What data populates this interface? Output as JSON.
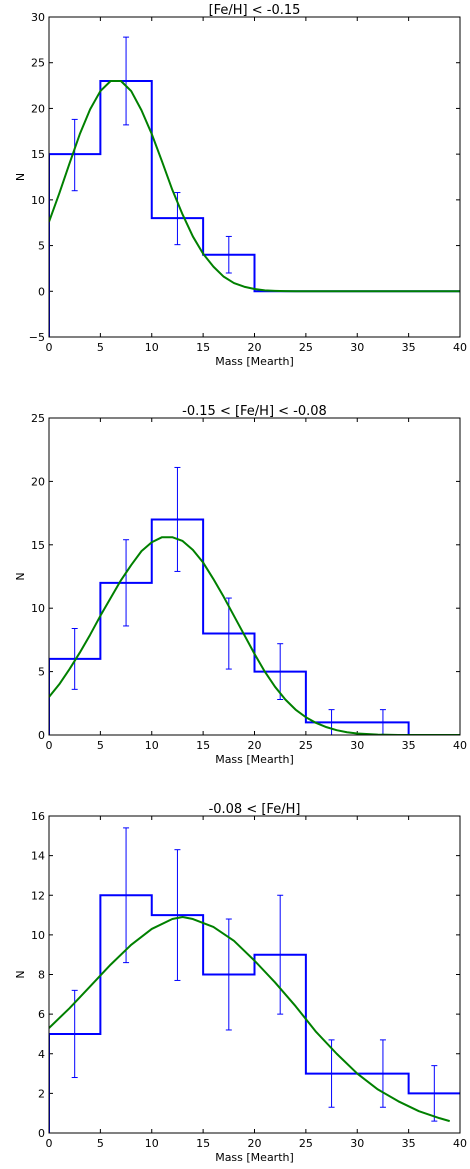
{
  "chart_data": [
    {
      "type": "histogram-step",
      "title": "[Fe/H] < -0.15",
      "xlabel": "Mass [Mearth]",
      "ylabel": "N",
      "xlim": [
        0,
        40
      ],
      "ylim": [
        -5,
        30
      ],
      "xticks": [
        0,
        5,
        10,
        15,
        20,
        25,
        30,
        35,
        40
      ],
      "yticks": [
        -5,
        0,
        5,
        10,
        15,
        20,
        25,
        30
      ],
      "bin_edges": [
        0,
        5,
        10,
        15,
        20,
        25,
        30,
        35,
        40
      ],
      "counts": [
        15,
        23,
        8,
        4,
        0,
        0,
        0,
        0
      ],
      "errorbars": [
        {
          "x": 2.5,
          "low": 11.0,
          "high": 18.8
        },
        {
          "x": 7.5,
          "low": 18.2,
          "high": 27.8
        },
        {
          "x": 12.5,
          "low": 5.1,
          "high": 10.8
        },
        {
          "x": 17.5,
          "low": 2.0,
          "high": 6.0
        }
      ],
      "fit_curve": {
        "x": [
          0,
          1,
          2,
          3,
          4,
          5,
          6,
          7,
          8,
          9,
          10,
          11,
          12,
          13,
          14,
          15,
          16,
          17,
          18,
          19,
          20,
          21,
          22,
          23,
          24,
          25,
          30,
          35,
          40
        ],
        "y": [
          7.6,
          10.7,
          14.0,
          17.2,
          19.9,
          21.9,
          23.0,
          23.0,
          21.9,
          19.8,
          17.2,
          14.2,
          11.1,
          8.4,
          6.0,
          4.1,
          2.7,
          1.6,
          0.9,
          0.5,
          0.25,
          0.1,
          0.05,
          0.02,
          0.01,
          0.0,
          0.0,
          0.0,
          0.0
        ]
      },
      "colors": {
        "histogram": "#0000ff",
        "errorbar": "#0000ff",
        "fit": "#008000"
      }
    },
    {
      "type": "histogram-step",
      "title": "-0.15 < [Fe/H] < -0.08",
      "xlabel": "Mass [Mearth]",
      "ylabel": "N",
      "xlim": [
        0,
        40
      ],
      "ylim": [
        0,
        25
      ],
      "xticks": [
        0,
        5,
        10,
        15,
        20,
        25,
        30,
        35,
        40
      ],
      "yticks": [
        0,
        5,
        10,
        15,
        20,
        25
      ],
      "bin_edges": [
        0,
        5,
        10,
        15,
        20,
        25,
        30,
        35,
        40
      ],
      "counts": [
        6,
        12,
        17,
        8,
        5,
        1,
        1,
        0
      ],
      "errorbars": [
        {
          "x": 2.5,
          "low": 3.6,
          "high": 8.4
        },
        {
          "x": 7.5,
          "low": 8.6,
          "high": 15.4
        },
        {
          "x": 12.5,
          "low": 12.9,
          "high": 21.1
        },
        {
          "x": 17.5,
          "low": 5.2,
          "high": 10.8
        },
        {
          "x": 22.5,
          "low": 2.8,
          "high": 7.2
        },
        {
          "x": 27.5,
          "low": 0.0,
          "high": 2.0
        },
        {
          "x": 32.5,
          "low": 0.0,
          "high": 2.0
        }
      ],
      "fit_curve": {
        "x": [
          0,
          1,
          2,
          3,
          4,
          5,
          6,
          7,
          8,
          9,
          10,
          11,
          12,
          13,
          14,
          15,
          16,
          17,
          18,
          19,
          20,
          21,
          22,
          23,
          24,
          25,
          26,
          27,
          28,
          29,
          30,
          32,
          34,
          36,
          38,
          40
        ],
        "y": [
          3.0,
          4.0,
          5.2,
          6.5,
          7.9,
          9.4,
          10.8,
          12.2,
          13.4,
          14.5,
          15.2,
          15.6,
          15.6,
          15.3,
          14.6,
          13.6,
          12.3,
          10.9,
          9.4,
          7.9,
          6.4,
          5.0,
          3.8,
          2.8,
          2.0,
          1.4,
          0.95,
          0.62,
          0.38,
          0.22,
          0.12,
          0.03,
          0.0,
          0.0,
          0.0,
          0.0
        ]
      },
      "colors": {
        "histogram": "#0000ff",
        "errorbar": "#0000ff",
        "fit": "#008000"
      }
    },
    {
      "type": "histogram-step",
      "title": "-0.08 < [Fe/H]",
      "xlabel": "Mass [Mearth]",
      "ylabel": "N",
      "xlim": [
        0,
        40
      ],
      "ylim": [
        0,
        16
      ],
      "xticks": [
        0,
        5,
        10,
        15,
        20,
        25,
        30,
        35,
        40
      ],
      "yticks": [
        0,
        2,
        4,
        6,
        8,
        10,
        12,
        14,
        16
      ],
      "bin_edges": [
        0,
        5,
        10,
        15,
        20,
        25,
        30,
        35,
        40
      ],
      "counts": [
        5,
        12,
        11,
        8,
        9,
        3,
        3,
        2
      ],
      "errorbars": [
        {
          "x": 2.5,
          "low": 2.8,
          "high": 7.2
        },
        {
          "x": 7.5,
          "low": 8.6,
          "high": 15.4
        },
        {
          "x": 12.5,
          "low": 7.7,
          "high": 14.3
        },
        {
          "x": 17.5,
          "low": 5.2,
          "high": 10.8
        },
        {
          "x": 22.5,
          "low": 6.0,
          "high": 12.0
        },
        {
          "x": 27.5,
          "low": 1.3,
          "high": 4.7
        },
        {
          "x": 32.5,
          "low": 1.3,
          "high": 4.7
        },
        {
          "x": 37.5,
          "low": 0.6,
          "high": 3.4
        }
      ],
      "fit_curve": {
        "x": [
          0,
          2,
          4,
          6,
          8,
          10,
          12,
          13,
          14,
          16,
          18,
          20,
          22,
          24,
          26,
          28,
          30,
          32,
          34,
          36,
          38,
          39
        ],
        "y": [
          5.3,
          6.3,
          7.4,
          8.5,
          9.5,
          10.3,
          10.8,
          10.9,
          10.8,
          10.4,
          9.7,
          8.7,
          7.6,
          6.4,
          5.1,
          4.0,
          3.0,
          2.2,
          1.6,
          1.1,
          0.75,
          0.6
        ]
      },
      "colors": {
        "histogram": "#0000ff",
        "errorbar": "#0000ff",
        "fit": "#008000"
      }
    }
  ]
}
